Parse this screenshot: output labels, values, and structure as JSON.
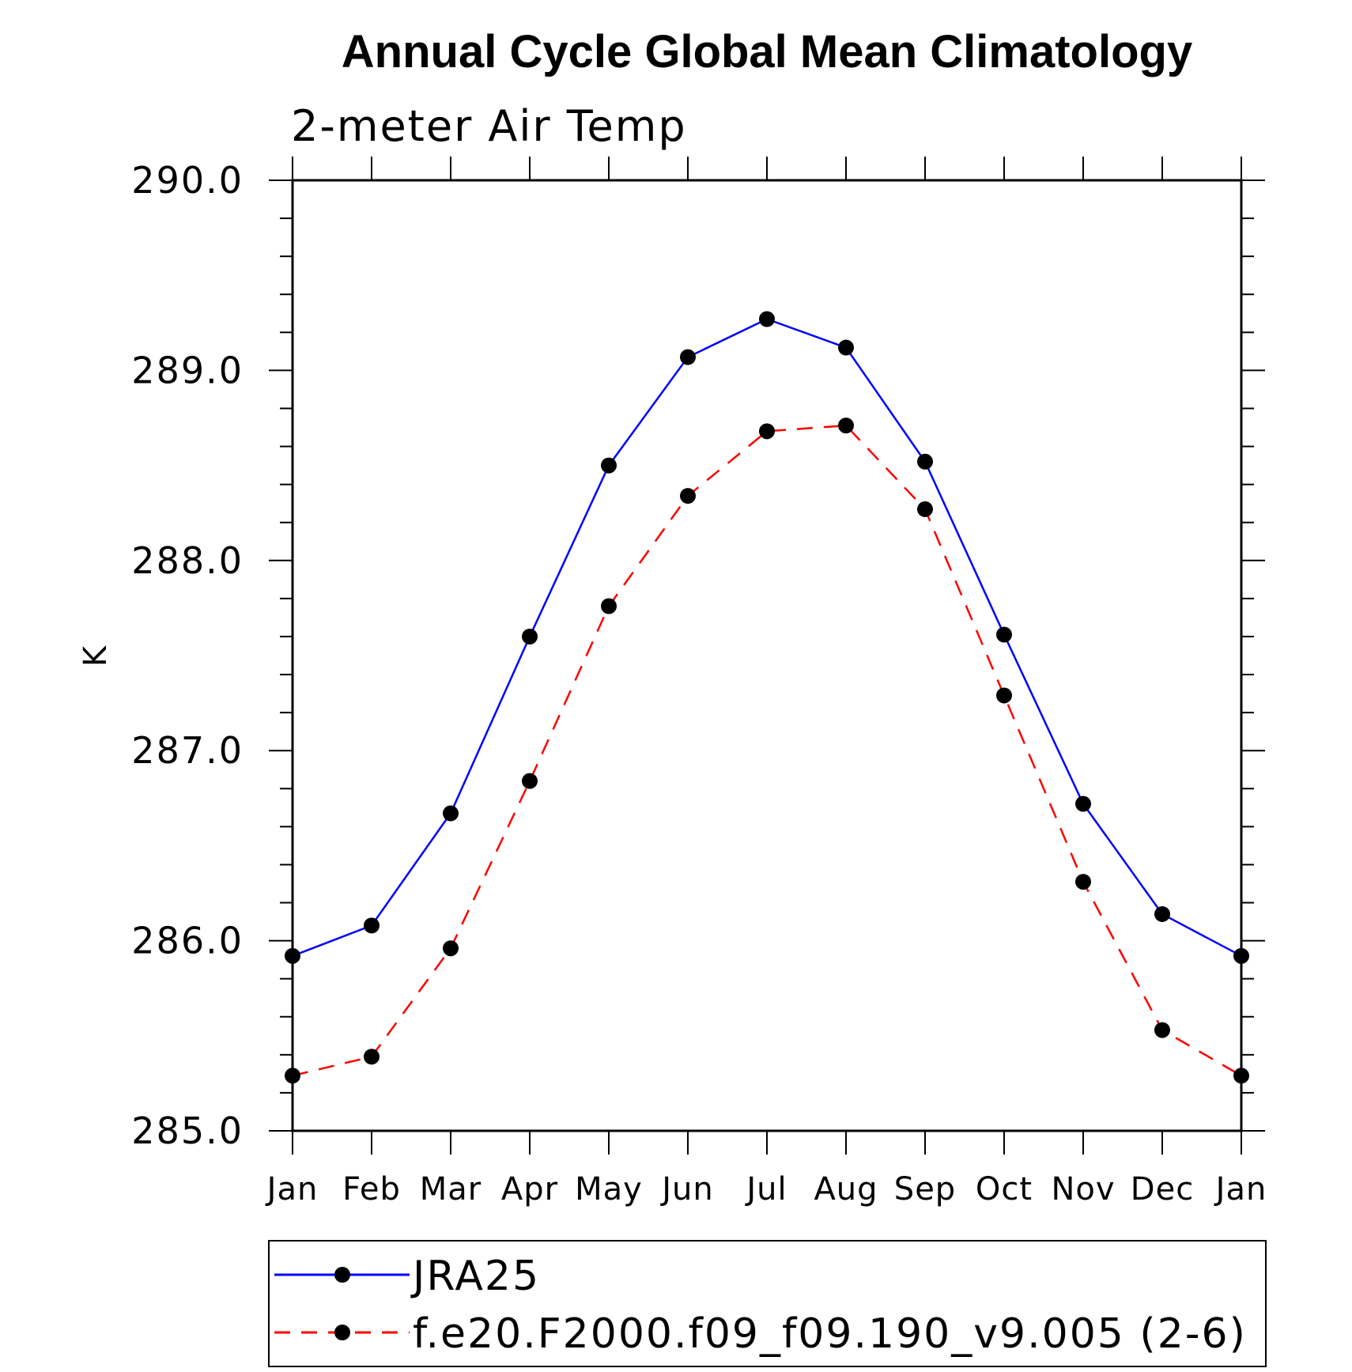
{
  "chart_data": {
    "type": "line",
    "title": "Annual Cycle Global Mean Climatology",
    "subtitle": "2-meter Air Temp",
    "xlabel": "",
    "ylabel": "K",
    "categories": [
      "Jan",
      "Feb",
      "Mar",
      "Apr",
      "May",
      "Jun",
      "Jul",
      "Aug",
      "Sep",
      "Oct",
      "Nov",
      "Dec",
      "Jan"
    ],
    "ylim": [
      285.0,
      290.0
    ],
    "yticks": [
      "285.0",
      "286.0",
      "287.0",
      "288.0",
      "289.0",
      "290.0"
    ],
    "y_minor_step": 0.2,
    "grid": false,
    "legend_placement": "bottom",
    "series": [
      {
        "name": "JRA25",
        "color": "#0000ff",
        "dash": "solid",
        "marker": "filled-circle",
        "values": [
          285.92,
          286.08,
          286.67,
          287.6,
          288.5,
          289.07,
          289.27,
          289.12,
          288.52,
          287.61,
          286.72,
          286.14,
          285.92
        ]
      },
      {
        "name": "f.e20.F2000.f09_f09.190_v9.005 (2-6)",
        "color": "#ff0000",
        "dash": "dashed",
        "marker": "filled-circle",
        "values": [
          285.29,
          285.39,
          285.96,
          286.84,
          287.76,
          288.34,
          288.68,
          288.71,
          288.27,
          287.29,
          286.31,
          285.53,
          285.29
        ]
      }
    ]
  }
}
